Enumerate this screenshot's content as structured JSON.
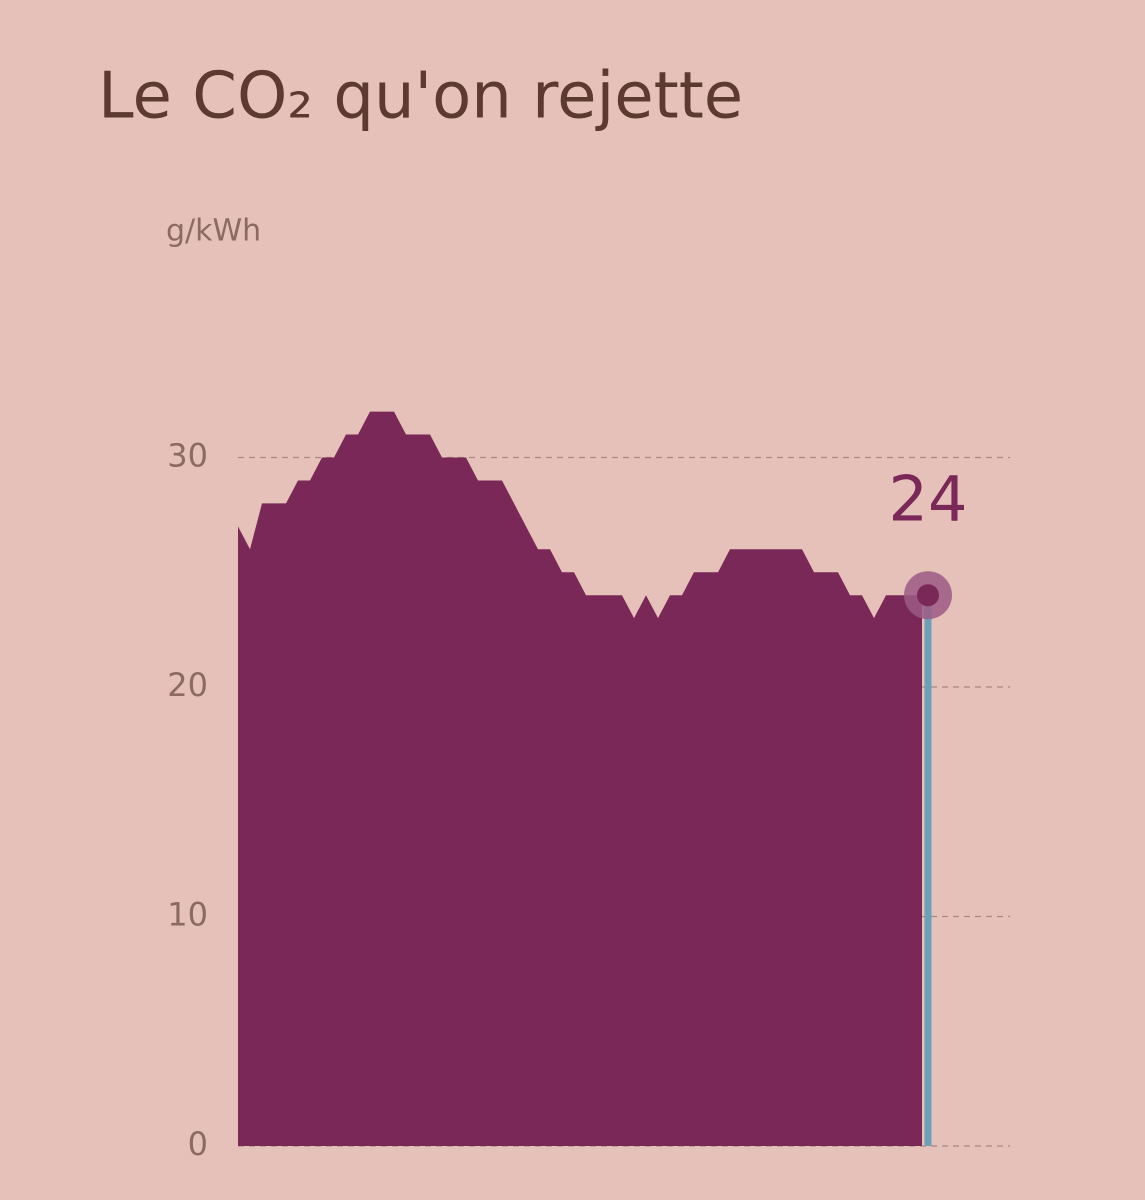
{
  "chart_data": {
    "type": "area",
    "title": "Le CO₂ qu'on rejette",
    "y_label": "g/kWh",
    "values": [
      27,
      26,
      28,
      28,
      28,
      29,
      29,
      30,
      30,
      31,
      31,
      32,
      32,
      32,
      31,
      31,
      31,
      30,
      30,
      30,
      29,
      29,
      29,
      28,
      27,
      26,
      26,
      25,
      25,
      24,
      24,
      24,
      24,
      23,
      24,
      23,
      24,
      24,
      25,
      25,
      25,
      26,
      26,
      26,
      26,
      26,
      26,
      26,
      25,
      25,
      25,
      24,
      24,
      23,
      24,
      24,
      24,
      24
    ],
    "color": "#7a2857",
    "ylim": [
      0,
      35
    ],
    "yticks": [
      0,
      10,
      20,
      30
    ],
    "grid": true
  }
}
